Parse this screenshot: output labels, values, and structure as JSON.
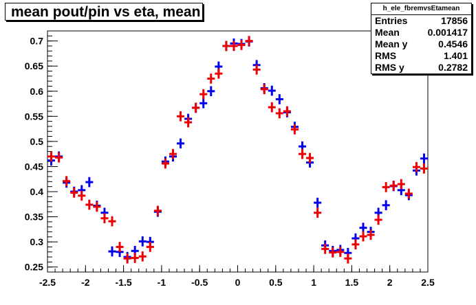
{
  "title": "mean pout/pin vs eta, mean",
  "stats": {
    "name": "h_ele_fbremvsEtamean",
    "rows": [
      {
        "label": "Entries",
        "value": "17856"
      },
      {
        "label": "Mean",
        "value": "0.001417"
      },
      {
        "label": "Mean y",
        "value": "0.4546"
      },
      {
        "label": "RMS",
        "value": "1.401"
      },
      {
        "label": "RMS y",
        "value": "0.2782"
      }
    ]
  },
  "chart_data": {
    "type": "scatter",
    "xlim": [
      -2.5,
      2.5
    ],
    "ylim": [
      0.24,
      0.72
    ],
    "xticks": [
      -2.5,
      -2,
      -1.5,
      -1,
      -0.5,
      0,
      0.5,
      1,
      1.5,
      2,
      2.5
    ],
    "xtick_labels": [
      "-2.5",
      "-2",
      "-1.5",
      "-1",
      "-0.5",
      "0",
      "0.5",
      "1",
      "1.5",
      "2",
      "2.5"
    ],
    "yticks": [
      0.25,
      0.3,
      0.35,
      0.4,
      0.45,
      0.5,
      0.55,
      0.6,
      0.65,
      0.7
    ],
    "ytick_labels": [
      "0.25",
      "0.3",
      "0.35",
      "0.4",
      "0.45",
      "0.5",
      "0.55",
      "0.6",
      "0.65",
      "0.7"
    ],
    "bin_halfwidth": 0.05,
    "colors": {
      "blue": "#0000ee",
      "red": "#ee0000"
    },
    "series": [
      {
        "color": "#0000ee",
        "points": [
          [
            -2.45,
            0.462,
            0.01
          ],
          [
            -2.35,
            0.47,
            0.01
          ],
          [
            -2.25,
            0.418,
            0.01
          ],
          [
            -2.15,
            0.4,
            0.01
          ],
          [
            -2.05,
            0.403,
            0.01
          ],
          [
            -1.95,
            0.419,
            0.01
          ],
          [
            -1.85,
            0.372,
            0.01
          ],
          [
            -1.75,
            0.358,
            0.01
          ],
          [
            -1.65,
            0.281,
            0.01
          ],
          [
            -1.55,
            0.28,
            0.01
          ],
          [
            -1.45,
            0.27,
            0.01
          ],
          [
            -1.35,
            0.282,
            0.01
          ],
          [
            -1.25,
            0.301,
            0.01
          ],
          [
            -1.15,
            0.3,
            0.01
          ],
          [
            -1.05,
            0.36,
            0.01
          ],
          [
            -0.95,
            0.46,
            0.01
          ],
          [
            -0.85,
            0.47,
            0.01
          ],
          [
            -0.75,
            0.496,
            0.01
          ],
          [
            -0.65,
            0.545,
            0.01
          ],
          [
            -0.55,
            0.567,
            0.01
          ],
          [
            -0.45,
            0.576,
            0.01
          ],
          [
            -0.35,
            0.6,
            0.01
          ],
          [
            -0.25,
            0.649,
            0.01
          ],
          [
            -0.15,
            0.69,
            0.01
          ],
          [
            -0.05,
            0.695,
            0.01
          ],
          [
            0.05,
            0.694,
            0.01
          ],
          [
            0.15,
            0.699,
            0.01
          ],
          [
            0.25,
            0.652,
            0.01
          ],
          [
            0.35,
            0.606,
            0.01
          ],
          [
            0.45,
            0.601,
            0.01
          ],
          [
            0.55,
            0.584,
            0.01
          ],
          [
            0.65,
            0.558,
            0.01
          ],
          [
            0.75,
            0.529,
            0.01
          ],
          [
            0.85,
            0.49,
            0.01
          ],
          [
            0.95,
            0.458,
            0.01
          ],
          [
            1.05,
            0.378,
            0.01
          ],
          [
            1.15,
            0.293,
            0.01
          ],
          [
            1.25,
            0.282,
            0.01
          ],
          [
            1.35,
            0.284,
            0.01
          ],
          [
            1.45,
            0.278,
            0.01
          ],
          [
            1.55,
            0.307,
            0.01
          ],
          [
            1.65,
            0.328,
            0.01
          ],
          [
            1.75,
            0.32,
            0.01
          ],
          [
            1.85,
            0.358,
            0.01
          ],
          [
            1.95,
            0.373,
            0.01
          ],
          [
            2.05,
            0.411,
            0.01
          ],
          [
            2.15,
            0.403,
            0.01
          ],
          [
            2.25,
            0.393,
            0.01
          ],
          [
            2.35,
            0.442,
            0.01
          ],
          [
            2.45,
            0.466,
            0.01
          ]
        ]
      },
      {
        "color": "#ee0000",
        "points": [
          [
            -2.45,
            0.47,
            0.01
          ],
          [
            -2.35,
            0.468,
            0.01
          ],
          [
            -2.25,
            0.421,
            0.01
          ],
          [
            -2.15,
            0.398,
            0.01
          ],
          [
            -2.05,
            0.392,
            0.01
          ],
          [
            -1.95,
            0.374,
            0.01
          ],
          [
            -1.85,
            0.37,
            0.01
          ],
          [
            -1.75,
            0.347,
            0.01
          ],
          [
            -1.65,
            0.341,
            0.01
          ],
          [
            -1.55,
            0.29,
            0.01
          ],
          [
            -1.45,
            0.267,
            0.01
          ],
          [
            -1.35,
            0.268,
            0.01
          ],
          [
            -1.25,
            0.271,
            0.01
          ],
          [
            -1.15,
            0.29,
            0.01
          ],
          [
            -1.05,
            0.362,
            0.01
          ],
          [
            -0.95,
            0.456,
            0.01
          ],
          [
            -0.85,
            0.475,
            0.01
          ],
          [
            -0.75,
            0.55,
            0.01
          ],
          [
            -0.65,
            0.538,
            0.01
          ],
          [
            -0.55,
            0.567,
            0.01
          ],
          [
            -0.45,
            0.594,
            0.01
          ],
          [
            -0.35,
            0.625,
            0.01
          ],
          [
            -0.25,
            0.635,
            0.01
          ],
          [
            -0.15,
            0.69,
            0.01
          ],
          [
            -0.05,
            0.69,
            0.01
          ],
          [
            0.05,
            0.692,
            0.01
          ],
          [
            0.15,
            0.7,
            0.01
          ],
          [
            0.25,
            0.643,
            0.01
          ],
          [
            0.35,
            0.604,
            0.01
          ],
          [
            0.45,
            0.568,
            0.01
          ],
          [
            0.55,
            0.556,
            0.01
          ],
          [
            0.65,
            0.56,
            0.01
          ],
          [
            0.75,
            0.524,
            0.01
          ],
          [
            0.85,
            0.475,
            0.01
          ],
          [
            0.95,
            0.467,
            0.01
          ],
          [
            1.05,
            0.358,
            0.01
          ],
          [
            1.15,
            0.286,
            0.01
          ],
          [
            1.25,
            0.279,
            0.01
          ],
          [
            1.35,
            0.28,
            0.01
          ],
          [
            1.45,
            0.267,
            0.01
          ],
          [
            1.55,
            0.295,
            0.01
          ],
          [
            1.65,
            0.311,
            0.01
          ],
          [
            1.75,
            0.314,
            0.01
          ],
          [
            1.85,
            0.344,
            0.01
          ],
          [
            1.95,
            0.409,
            0.01
          ],
          [
            2.05,
            0.412,
            0.01
          ],
          [
            2.15,
            0.415,
            0.01
          ],
          [
            2.25,
            0.396,
            0.01
          ],
          [
            2.35,
            0.449,
            0.01
          ],
          [
            2.45,
            0.446,
            0.01
          ]
        ]
      }
    ]
  }
}
